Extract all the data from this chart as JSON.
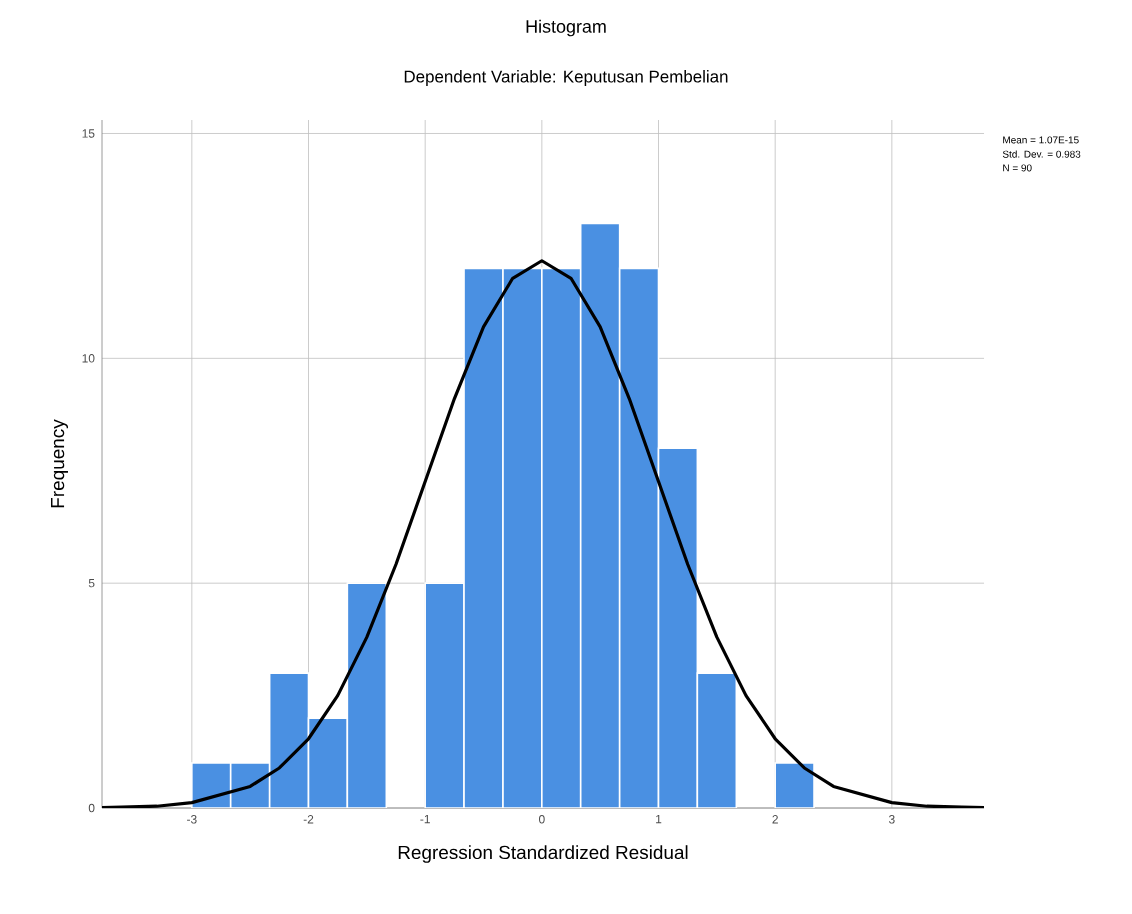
{
  "chart_data": {
    "type": "histogram",
    "title": "Histogram",
    "subtitle": "Dependent Variable: Keputusan Pembelian",
    "xlabel": "Regression Standardized Residual",
    "ylabel": "Frequency",
    "series": [
      {
        "color": "#4a90e2",
        "bins": [
          -3,
          -2.667,
          -2.333,
          -2,
          -1.667,
          -1.333,
          -1,
          -0.667,
          -0.333,
          0,
          0.333,
          0.667,
          1,
          1.333,
          1.667,
          2,
          2.333
        ],
        "values": [
          1,
          1,
          3,
          2,
          5,
          0,
          5,
          12,
          12,
          12,
          13,
          12,
          8,
          3,
          0,
          1
        ]
      },
      {
        "type": "line",
        "color": "#000000",
        "x": [
          -3.77,
          -3.6,
          -3.3,
          -3,
          -2.5,
          -2.25,
          -2,
          -1.75,
          -1.5,
          -1.25,
          -1,
          -0.75,
          -0.5,
          -0.25,
          0,
          0.25,
          0.5,
          0.75,
          1,
          1.25,
          1.5,
          1.75,
          2,
          2.25,
          2.5,
          3,
          3.3,
          3.6,
          3.79
        ],
        "values": [
          0.01,
          0.02,
          0.04,
          0.12,
          0.48,
          0.89,
          1.54,
          2.5,
          3.8,
          5.42,
          7.26,
          9.1,
          10.7,
          11.78,
          12.17,
          11.78,
          10.7,
          9.1,
          7.26,
          5.42,
          3.8,
          2.5,
          1.54,
          0.89,
          0.48,
          0.12,
          0.04,
          0.02,
          0.01
        ]
      }
    ],
    "xlim": [
      -3.77,
      3.79
    ],
    "ylim": [
      0,
      15.3
    ],
    "xticks": [
      -3,
      -2,
      -1,
      0,
      1,
      2,
      3
    ],
    "yticks": [
      0,
      5,
      10,
      15
    ],
    "grid": true,
    "annotations": [
      "Mean = 1.07E-15",
      "Std. Dev. = 0.983",
      "N = 90"
    ]
  }
}
